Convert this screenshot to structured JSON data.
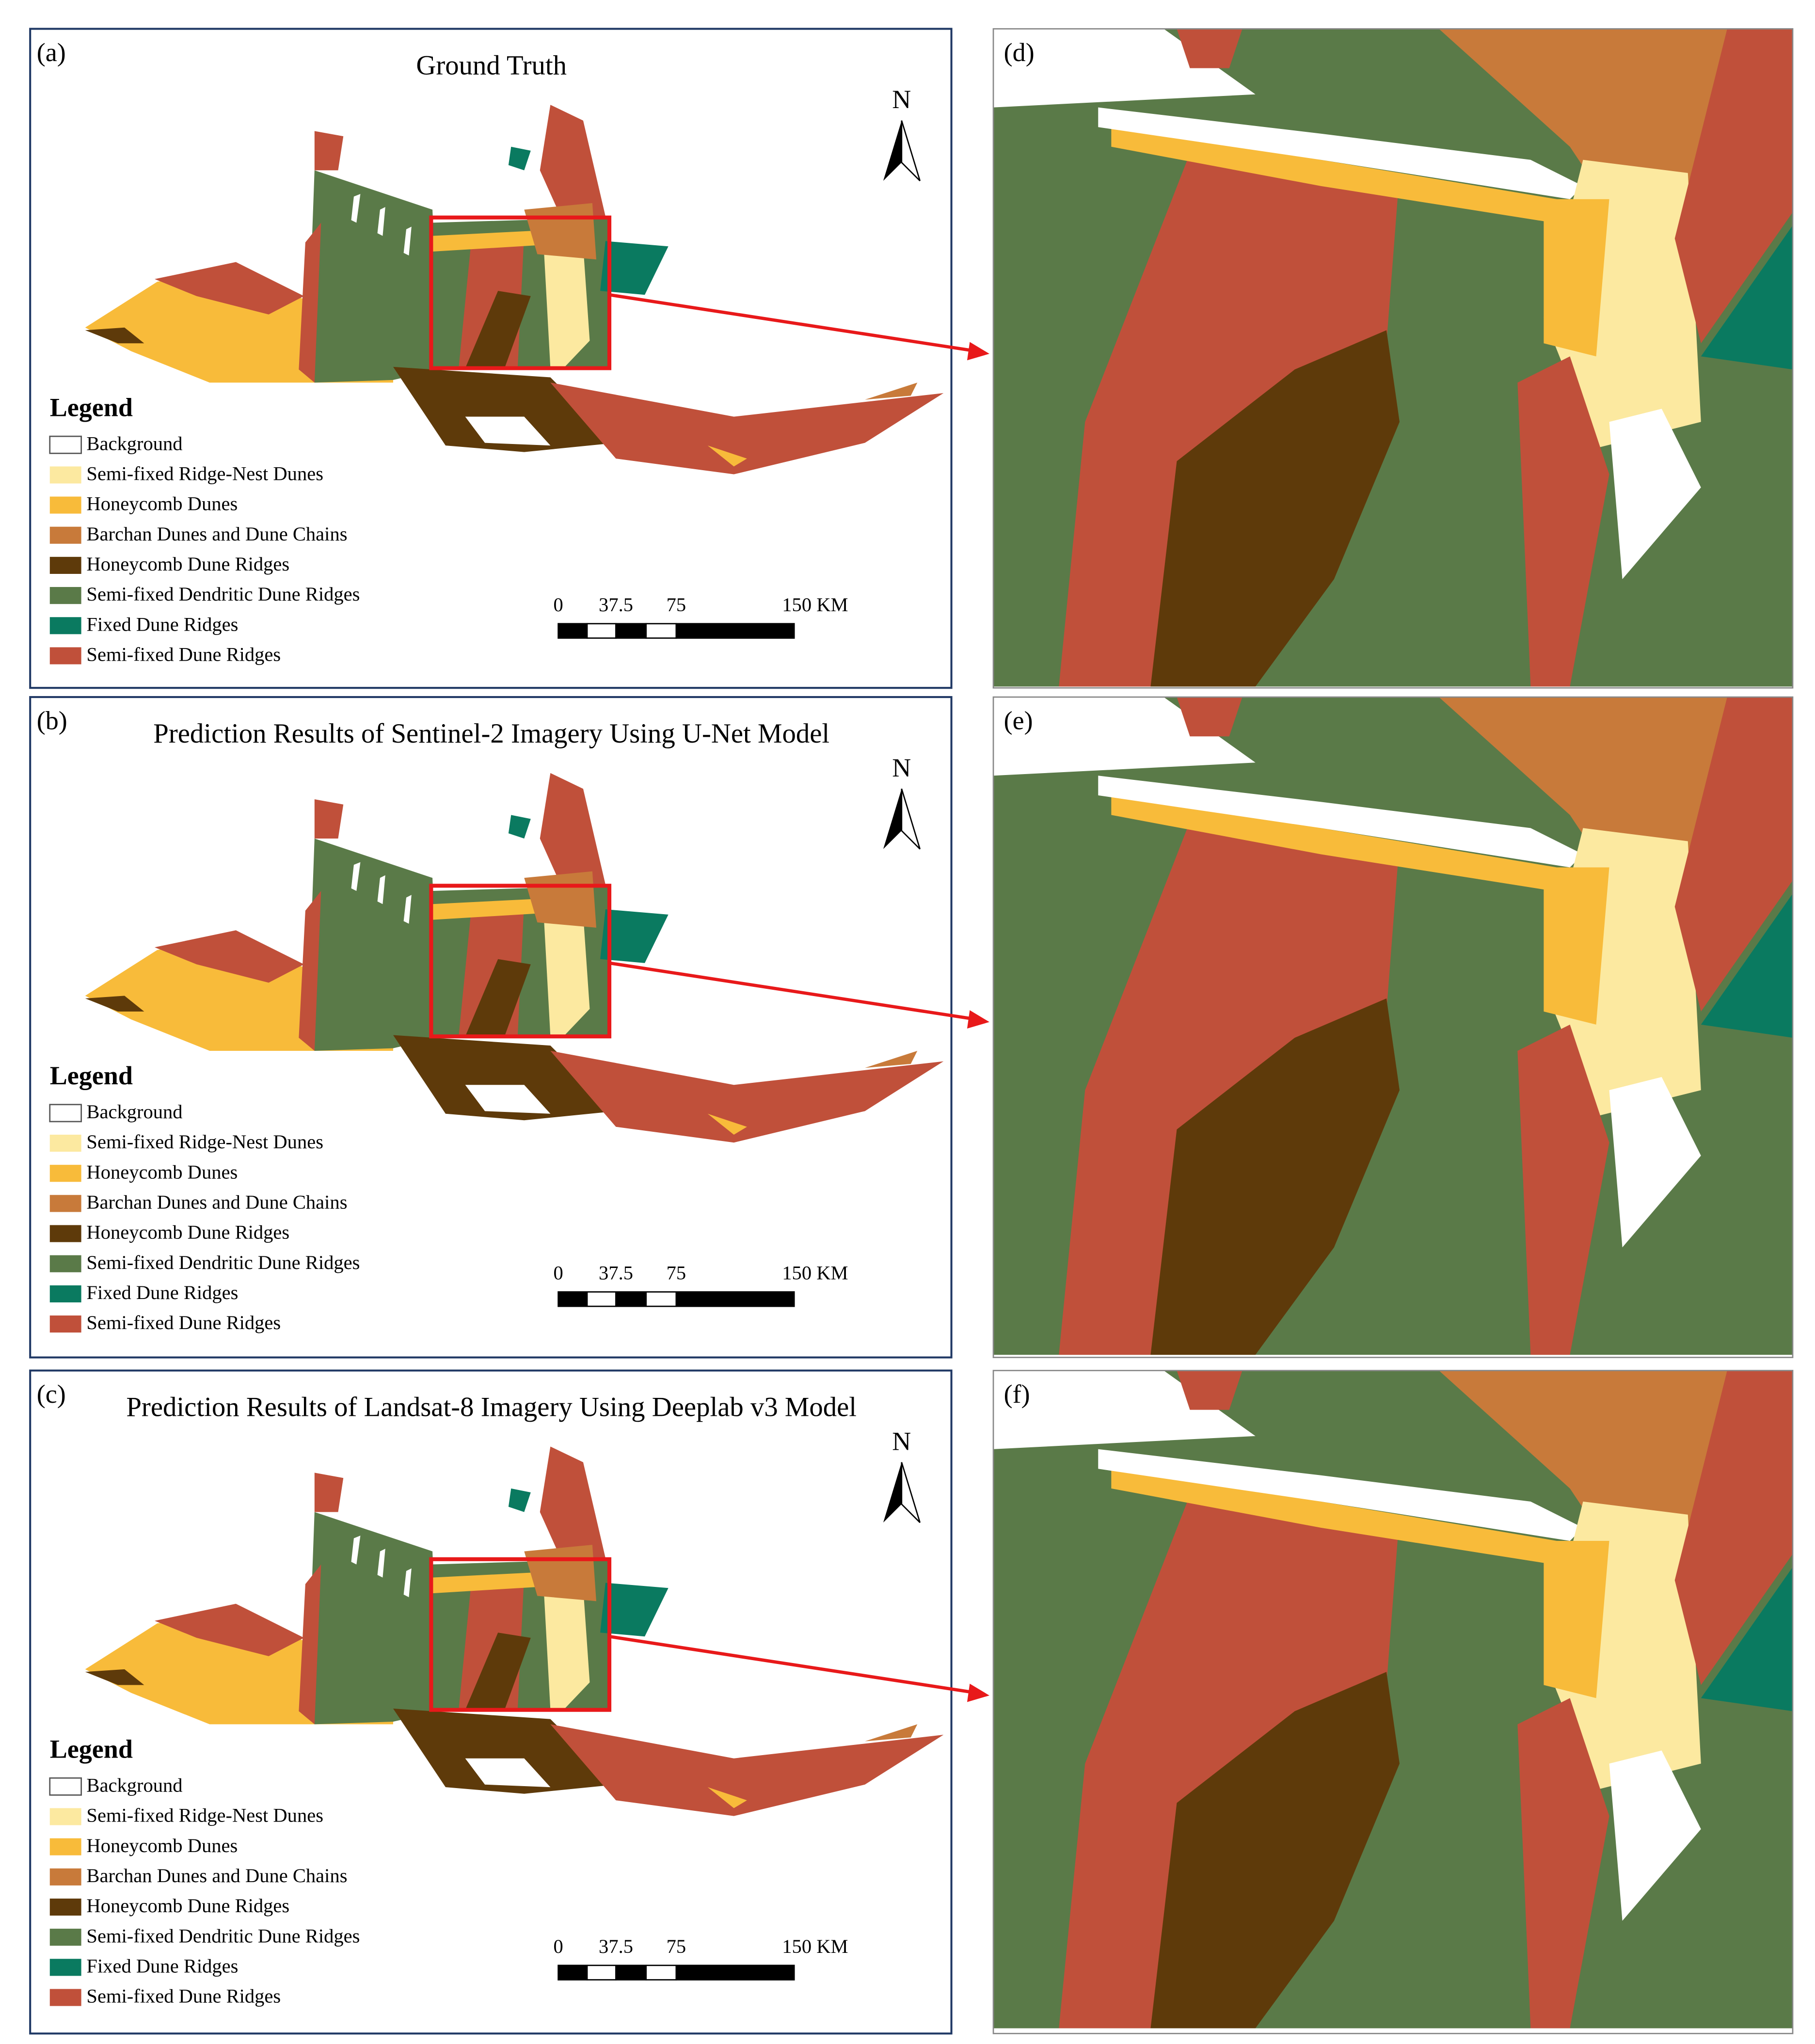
{
  "panels": [
    {
      "label": "(a)",
      "title": "Ground Truth",
      "north": "N",
      "legend": {
        "title": "Legend",
        "items": [
          {
            "label": "Background",
            "color": "#ffffff"
          },
          {
            "label": "Semi-fixed Ridge-Nest Dunes",
            "color": "#fce9a0"
          },
          {
            "label": "Honeycomb Dunes",
            "color": "#f8bb3a"
          },
          {
            "label": "Barchan Dunes and Dune Chains",
            "color": "#c87a3a"
          },
          {
            "label": "Honeycomb Dune Ridges",
            "color": "#5e3a0a"
          },
          {
            "label": "Semi-fixed Dendritic Dune Ridges",
            "color": "#5a7a48"
          },
          {
            "label": "Fixed Dune Ridges",
            "color": "#0a7a60"
          },
          {
            "label": "Semi-fixed Dune Ridges",
            "color": "#c0503a"
          }
        ]
      },
      "scale": [
        "0",
        "37.5",
        "75",
        "150 KM"
      ]
    },
    {
      "label": "(b)",
      "title": "Prediction Results of Sentinel-2 Imagery Using U-Net Model",
      "north": "N",
      "legend": {
        "title": "Legend",
        "items": [
          {
            "label": "Background",
            "color": "#ffffff"
          },
          {
            "label": "Semi-fixed Ridge-Nest Dunes",
            "color": "#fce9a0"
          },
          {
            "label": "Honeycomb Dunes",
            "color": "#f8bb3a"
          },
          {
            "label": "Barchan Dunes and Dune Chains",
            "color": "#c87a3a"
          },
          {
            "label": "Honeycomb Dune Ridges",
            "color": "#5e3a0a"
          },
          {
            "label": "Semi-fixed Dendritic Dune Ridges",
            "color": "#5a7a48"
          },
          {
            "label": "Fixed Dune Ridges",
            "color": "#0a7a60"
          },
          {
            "label": "Semi-fixed Dune Ridges",
            "color": "#c0503a"
          }
        ]
      },
      "scale": [
        "0",
        "37.5",
        "75",
        "150 KM"
      ]
    },
    {
      "label": "(c)",
      "title": "Prediction Results of Landsat-8 Imagery Using Deeplab v3 Model",
      "north": "N",
      "legend": {
        "title": "Legend",
        "items": [
          {
            "label": "Background",
            "color": "#ffffff"
          },
          {
            "label": "Semi-fixed Ridge-Nest Dunes",
            "color": "#fce9a0"
          },
          {
            "label": "Honeycomb Dunes",
            "color": "#f8bb3a"
          },
          {
            "label": "Barchan Dunes and Dune Chains",
            "color": "#c87a3a"
          },
          {
            "label": "Honeycomb Dune Ridges",
            "color": "#5e3a0a"
          },
          {
            "label": "Semi-fixed Dendritic Dune Ridges",
            "color": "#5a7a48"
          },
          {
            "label": "Fixed Dune Ridges",
            "color": "#0a7a60"
          },
          {
            "label": "Semi-fixed Dune Ridges",
            "color": "#c0503a"
          }
        ]
      },
      "scale": [
        "0",
        "37.5",
        "75",
        "150 KM"
      ]
    }
  ],
  "zoom_panels": [
    {
      "label": "(d)"
    },
    {
      "label": "(e)"
    },
    {
      "label": "(f)"
    }
  ]
}
